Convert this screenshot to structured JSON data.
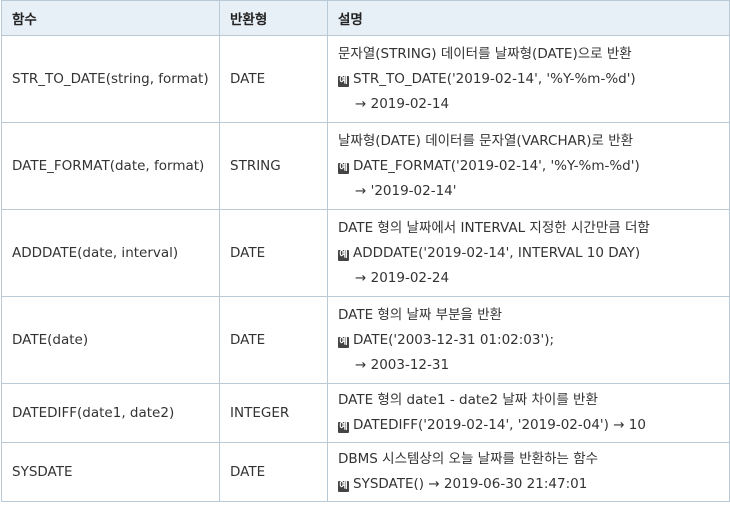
{
  "headers": [
    "함수",
    "반환형",
    "설명"
  ],
  "example_mark": "예",
  "rows": [
    {
      "func": "STR_TO_DATE(string, format)",
      "ret": "DATE",
      "desc": "문자열(STRING) 데이터를 날짜형(DATE)으로 반환",
      "example": "STR_TO_DATE('2019-02-14', '%Y-%m-%d')",
      "result": "→ 2019-02-14"
    },
    {
      "func": "DATE_FORMAT(date, format)",
      "ret": "STRING",
      "desc": "날짜형(DATE) 데이터를 문자열(VARCHAR)로 반환",
      "example": "DATE_FORMAT('2019-02-14', '%Y-%m-%d')",
      "result": "→ '2019-02-14'"
    },
    {
      "func": "ADDDATE(date, interval)",
      "ret": "DATE",
      "desc": "DATE 형의 날짜에서 INTERVAL 지정한 시간만큼 더함",
      "example": "ADDDATE('2019-02-14', INTERVAL 10 DAY)",
      "result": "→ 2019-02-24"
    },
    {
      "func": "DATE(date)",
      "ret": "DATE",
      "desc": "DATE 형의 날짜 부분을 반환",
      "example": "DATE('2003-12-31 01:02:03');",
      "result": "→ 2003-12-31"
    },
    {
      "func": "DATEDIFF(date1, date2)",
      "ret": "INTEGER",
      "desc": "DATE 형의 date1 - date2 날짜 차이를 반환",
      "example": "DATEDIFF('2019-02-14', '2019-02-04') → 10"
    },
    {
      "func": "SYSDATE",
      "ret": "DATE",
      "desc": "DBMS 시스템상의 오늘 날짜를 반환하는 함수",
      "example": "SYSDATE() → 2019-06-30 21:47:01"
    }
  ]
}
